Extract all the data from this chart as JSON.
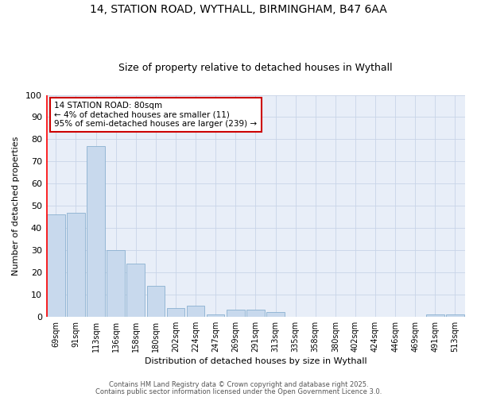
{
  "title1": "14, STATION ROAD, WYTHALL, BIRMINGHAM, B47 6AA",
  "title2": "Size of property relative to detached houses in Wythall",
  "xlabel": "Distribution of detached houses by size in Wythall",
  "ylabel": "Number of detached properties",
  "categories": [
    "69sqm",
    "91sqm",
    "113sqm",
    "136sqm",
    "158sqm",
    "180sqm",
    "202sqm",
    "224sqm",
    "247sqm",
    "269sqm",
    "291sqm",
    "313sqm",
    "335sqm",
    "358sqm",
    "380sqm",
    "402sqm",
    "424sqm",
    "446sqm",
    "469sqm",
    "491sqm",
    "513sqm"
  ],
  "values": [
    46,
    47,
    77,
    30,
    24,
    14,
    4,
    5,
    1,
    3,
    3,
    2,
    0,
    0,
    0,
    0,
    0,
    0,
    0,
    1,
    1
  ],
  "bar_color": "#c8d9ed",
  "bar_edge_color": "#8ab0d0",
  "grid_color": "#c8d4e8",
  "bg_color": "#e8eef8",
  "annotation_box_text": "14 STATION ROAD: 80sqm\n← 4% of detached houses are smaller (11)\n95% of semi-detached houses are larger (239) →",
  "annotation_box_color": "#ffffff",
  "annotation_box_edge": "#cc0000",
  "ylim": [
    0,
    100
  ],
  "yticks": [
    0,
    10,
    20,
    30,
    40,
    50,
    60,
    70,
    80,
    90,
    100
  ],
  "footer1": "Contains HM Land Registry data © Crown copyright and database right 2025.",
  "footer2": "Contains public sector information licensed under the Open Government Licence 3.0."
}
